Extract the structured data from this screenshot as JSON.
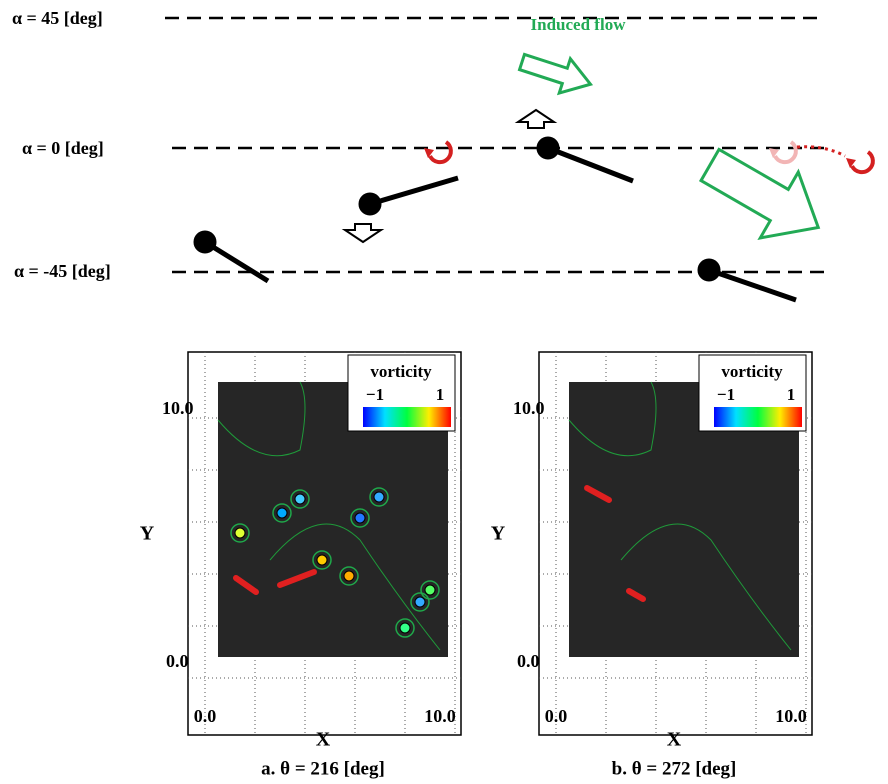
{
  "diagram": {
    "levels": [
      "α = 45 [deg]",
      "α = 0 [deg]",
      "α = -45 [deg]"
    ],
    "annotation": "Induced flow"
  },
  "panels": [
    {
      "caption": "a. θ = 216 [deg]",
      "x_label": "X",
      "y_label": "Y",
      "x_ticks": [
        "0.0",
        "10.0"
      ],
      "y_ticks": [
        "0.0",
        "10.0"
      ],
      "colorbar": {
        "title": "vorticity",
        "min": "−1",
        "max": "1"
      }
    },
    {
      "caption": "b. θ = 272 [deg]",
      "x_label": "X",
      "y_label": "Y",
      "x_ticks": [
        "0.0",
        "10.0"
      ],
      "y_ticks": [
        "0.0",
        "10.0"
      ],
      "colorbar": {
        "title": "vorticity",
        "min": "−1",
        "max": "1"
      }
    }
  ]
}
